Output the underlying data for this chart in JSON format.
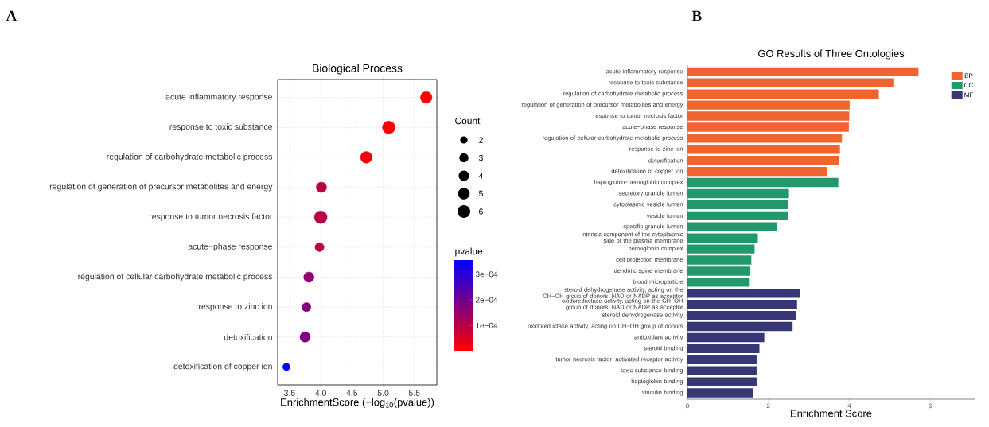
{
  "chart_data": [
    {
      "type": "bubble",
      "orientation": "horizontal",
      "title": "Biological Process",
      "xlabel": "EnrichmentScore (−log$_{10}$(pvalue))",
      "annotations": [
        "A"
      ],
      "categories": [
        "acute inflammatory response",
        "response to toxic substance",
        "regulation of carbohydrate metabolic process",
        "regulation of generation of precursor metabolites and energy",
        "response to tumor necrosis factor",
        "acute−phase response",
        "regulation of cellular carbohydrate metabolic process",
        "response to zinc ion",
        "detoxification",
        "detoxification of copper ion"
      ],
      "values": [
        5.69,
        5.09,
        4.73,
        4.01,
        4.0,
        3.98,
        3.81,
        3.77,
        3.75,
        3.45
      ],
      "sizes": [
        5,
        6,
        5,
        4,
        6,
        3,
        4,
        3,
        4,
        2
      ],
      "size_legend": [
        {
          "value": 2,
          "label": "2"
        },
        {
          "value": 3,
          "label": "3"
        },
        {
          "value": 4,
          "label": "4"
        },
        {
          "value": 5,
          "label": "5"
        },
        {
          "value": 6,
          "label": "6"
        }
      ],
      "legend_title": "Count",
      "cvalues": [
        2e-06,
        8e-06,
        1.9e-05,
        9.8e-05,
        0.0001,
        0.000105,
        0.000155,
        0.00017,
        0.000178,
        0.000355
      ],
      "clabel": "pvalue",
      "clim": [
        2e-06,
        0.000355
      ],
      "cticks": [
        {
          "value": 0.0001,
          "label": "1e−04"
        },
        {
          "value": 0.0002,
          "label": "2e−04"
        },
        {
          "value": 0.0003,
          "label": "3e−04"
        }
      ],
      "xlim": [
        3.31,
        5.86
      ],
      "xticks": [
        {
          "value": 3.5,
          "label": "3.5"
        },
        {
          "value": 4,
          "label": "4.0"
        },
        {
          "value": 4.5,
          "label": "4.5"
        },
        {
          "value": 5,
          "label": "5.0"
        },
        {
          "value": 5.5,
          "label": "5.5"
        }
      ],
      "grid": true
    },
    {
      "type": "bar",
      "orientation": "horizontal",
      "title": "GO Results of Three Ontologies",
      "xlabel": "Enrichment Score",
      "annotations": [
        "B"
      ],
      "categories": [
        "acute inflammatory response",
        "response to toxic substance",
        "regulation of carbohydrate metabolic process",
        "regulation of generation of precursor metabolites and energy",
        "response to tumor necrosis factor",
        "acute−phase response",
        "regulation of cellular carbohydrate metabolic process",
        "response to zinc ion",
        "detoxification",
        "detoxification of copper ion",
        "haptoglobin−hemoglobin complex",
        "secretory granule lumen",
        "cytoplasmic vesicle lumen",
        "vesicle lumen",
        "specific granule lumen",
        "intrinsic component of the cytoplasmic side of the plasma membrane",
        "hemoglobin complex",
        "cell projection membrane",
        "dendritic spine membrane",
        "blood microparticle",
        "steroid dehydrogenase activity, acting on the CH−OH group of donors, NAD or NADP as acceptor",
        "oxidoreductase activity, acting on the CH−OH group of donors, NAD or NADP as acceptor",
        "steroid dehydrogenase activity",
        "oxidoreductase activity, acting on CH−OH group of donors",
        "antioxidant activity",
        "steroid binding",
        "tumor necrosis factor−activated receptor activity",
        "toxic substance binding",
        "haptoglobin binding",
        "vinculin binding"
      ],
      "series": [
        {
          "name": "BP",
          "color": "#f0642f",
          "values": [
            5.71,
            5.09,
            4.73,
            4.01,
            4.0,
            3.99,
            3.82,
            3.77,
            3.75,
            3.46,
            null,
            null,
            null,
            null,
            null,
            null,
            null,
            null,
            null,
            null,
            null,
            null,
            null,
            null,
            null,
            null,
            null,
            null,
            null,
            null
          ]
        },
        {
          "name": "CC",
          "color": "#21996b",
          "values": [
            null,
            null,
            null,
            null,
            null,
            null,
            null,
            null,
            null,
            null,
            3.73,
            2.51,
            2.5,
            2.49,
            2.22,
            1.74,
            1.66,
            1.58,
            1.54,
            1.52,
            null,
            null,
            null,
            null,
            null,
            null,
            null,
            null,
            null,
            null
          ]
        },
        {
          "name": "MF",
          "color": "#363774",
          "values": [
            null,
            null,
            null,
            null,
            null,
            null,
            null,
            null,
            null,
            null,
            null,
            null,
            null,
            null,
            null,
            null,
            null,
            null,
            null,
            null,
            2.79,
            2.71,
            2.68,
            2.6,
            1.9,
            1.78,
            1.71,
            1.71,
            1.71,
            1.63
          ]
        }
      ],
      "xlim": [
        0,
        7.1
      ],
      "xticks": [
        0,
        2,
        4,
        6
      ],
      "legend": "top right"
    }
  ]
}
